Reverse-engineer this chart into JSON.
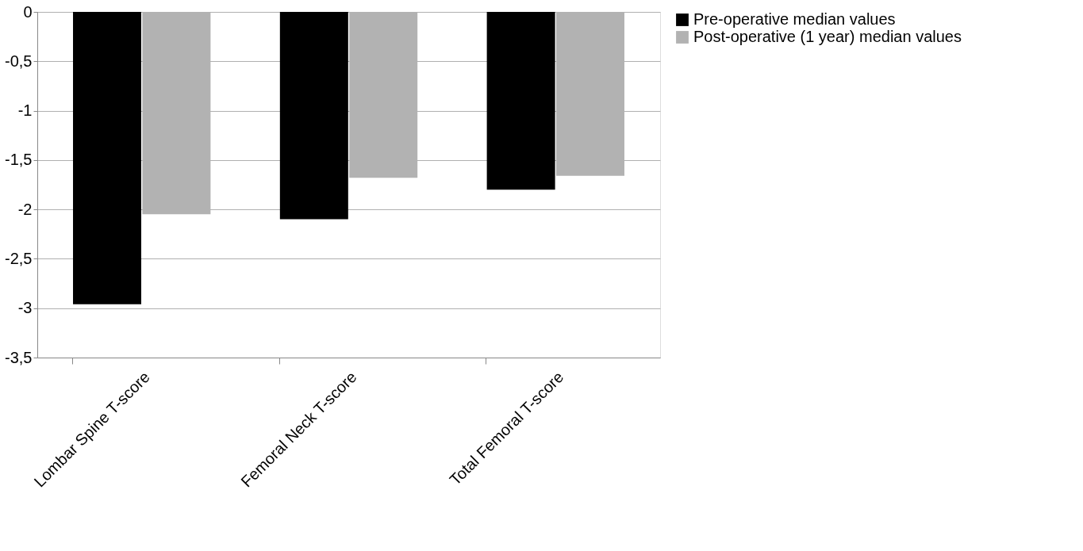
{
  "chart_data": {
    "type": "bar",
    "categories": [
      "Lombar Spine T-score",
      "Femoral Neck T-score",
      "Total Femoral T-score"
    ],
    "series": [
      {
        "name": "Pre-operative median values",
        "color": "#000000",
        "values": [
          -2.96,
          -2.1,
          -1.8
        ]
      },
      {
        "name": "Post-operative (1 year) median values",
        "color": "#b2b2b2",
        "values": [
          -2.05,
          -1.68,
          -1.66
        ]
      }
    ],
    "ylim": [
      -3.5,
      0
    ],
    "yticks": [
      {
        "value": 0,
        "label": "0"
      },
      {
        "value": -0.5,
        "label": "-0,5"
      },
      {
        "value": -1,
        "label": "-1"
      },
      {
        "value": -1.5,
        "label": "-1,5"
      },
      {
        "value": -2,
        "label": "-2"
      },
      {
        "value": -2.5,
        "label": "-2,5"
      },
      {
        "value": -3,
        "label": "-3"
      },
      {
        "value": -3.5,
        "label": "-3,5"
      }
    ],
    "grid": "y",
    "legend": "right"
  }
}
